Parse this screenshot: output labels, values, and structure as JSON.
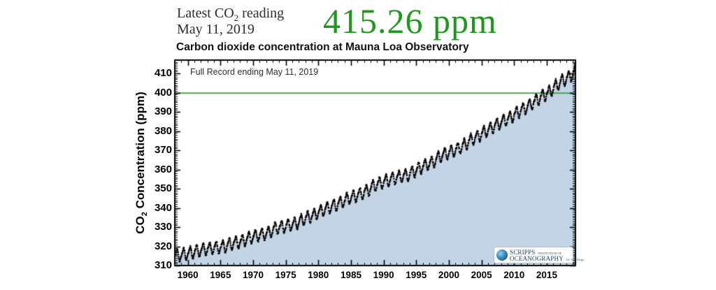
{
  "header": {
    "latest_prefix": "Latest CO",
    "latest_sub": "2",
    "latest_suffix": " reading",
    "latest_date": "May 11, 2019",
    "reading_value": "415.26 ppm",
    "chart_title": "Carbon dioxide concentration at Mauna Loa Observatory"
  },
  "colors": {
    "reading_green": "#1d9a1d",
    "reference_line_green": "#4aa34f",
    "area_fill_blue": "#c3d4e7",
    "dot_black": "#000000",
    "axis_black": "#000000",
    "annotation_gray": "#2e2e2e",
    "logo_navy": "#1c3c5e",
    "logo_globe_blue": "#2272b5"
  },
  "chart_data": {
    "type": "scatter",
    "title": "Carbon dioxide concentration at Mauna Loa Observatory",
    "annotation": "Full Record ending May 11, 2019",
    "ylabel": {
      "prefix": "CO",
      "sub": "2",
      "suffix": " Concentration (ppm)"
    },
    "xlabel": "",
    "grid": false,
    "legend": null,
    "x_range": [
      1958,
      2019.4
    ],
    "y_range": [
      310,
      417
    ],
    "x_major_ticks": [
      1960,
      1965,
      1970,
      1975,
      1980,
      1985,
      1990,
      1995,
      2000,
      2005,
      2010,
      2015
    ],
    "x_minor_step_years": 1,
    "y_major_ticks": [
      310,
      320,
      330,
      340,
      350,
      360,
      370,
      380,
      390,
      400,
      410
    ],
    "y_minor_step_ppm": 1,
    "reference_line_y": 400,
    "data_start": 1958.17,
    "data_end": 2019.37,
    "latest_point": {
      "x": 2019.37,
      "y": 415.26
    },
    "seasonal_offsets_monthly_ppm": [
      0.0,
      0.7,
      1.5,
      2.6,
      3.1,
      2.3,
      0.6,
      -1.5,
      -3.1,
      -3.3,
      -2.2,
      -1.0
    ],
    "series": [
      {
        "name": "CO2 concentration (monthly, Mauna Loa)",
        "years": [
          1958,
          1959,
          1960,
          1961,
          1962,
          1963,
          1964,
          1965,
          1966,
          1967,
          1968,
          1969,
          1970,
          1971,
          1972,
          1973,
          1974,
          1975,
          1976,
          1977,
          1978,
          1979,
          1980,
          1981,
          1982,
          1983,
          1984,
          1985,
          1986,
          1987,
          1988,
          1989,
          1990,
          1991,
          1992,
          1993,
          1994,
          1995,
          1996,
          1997,
          1998,
          1999,
          2000,
          2001,
          2002,
          2003,
          2004,
          2005,
          2006,
          2007,
          2008,
          2009,
          2010,
          2011,
          2012,
          2013,
          2014,
          2015,
          2016,
          2017,
          2018,
          2019
        ],
        "annual_mean_ppm": [
          315.3,
          316.0,
          316.9,
          317.6,
          318.5,
          319.0,
          319.6,
          320.0,
          321.4,
          322.2,
          323.0,
          324.6,
          325.7,
          326.3,
          327.5,
          329.7,
          330.2,
          331.1,
          332.0,
          333.8,
          335.4,
          336.8,
          338.8,
          340.1,
          341.4,
          343.1,
          344.9,
          346.1,
          347.4,
          349.2,
          351.6,
          353.1,
          354.4,
          355.6,
          356.4,
          357.1,
          358.8,
          360.8,
          362.6,
          363.7,
          366.7,
          368.4,
          369.5,
          371.1,
          373.2,
          375.8,
          377.5,
          379.8,
          381.9,
          383.8,
          385.6,
          387.4,
          389.9,
          391.7,
          393.8,
          396.5,
          398.6,
          400.8,
          404.2,
          406.6,
          408.5,
          412.0
        ]
      }
    ]
  },
  "logo": {
    "name1": "SCRIPPS",
    "name1_small": "INSTITUTION OF",
    "name2": "OCEANOGRAPHY",
    "name2_small": "UC San Diego"
  }
}
